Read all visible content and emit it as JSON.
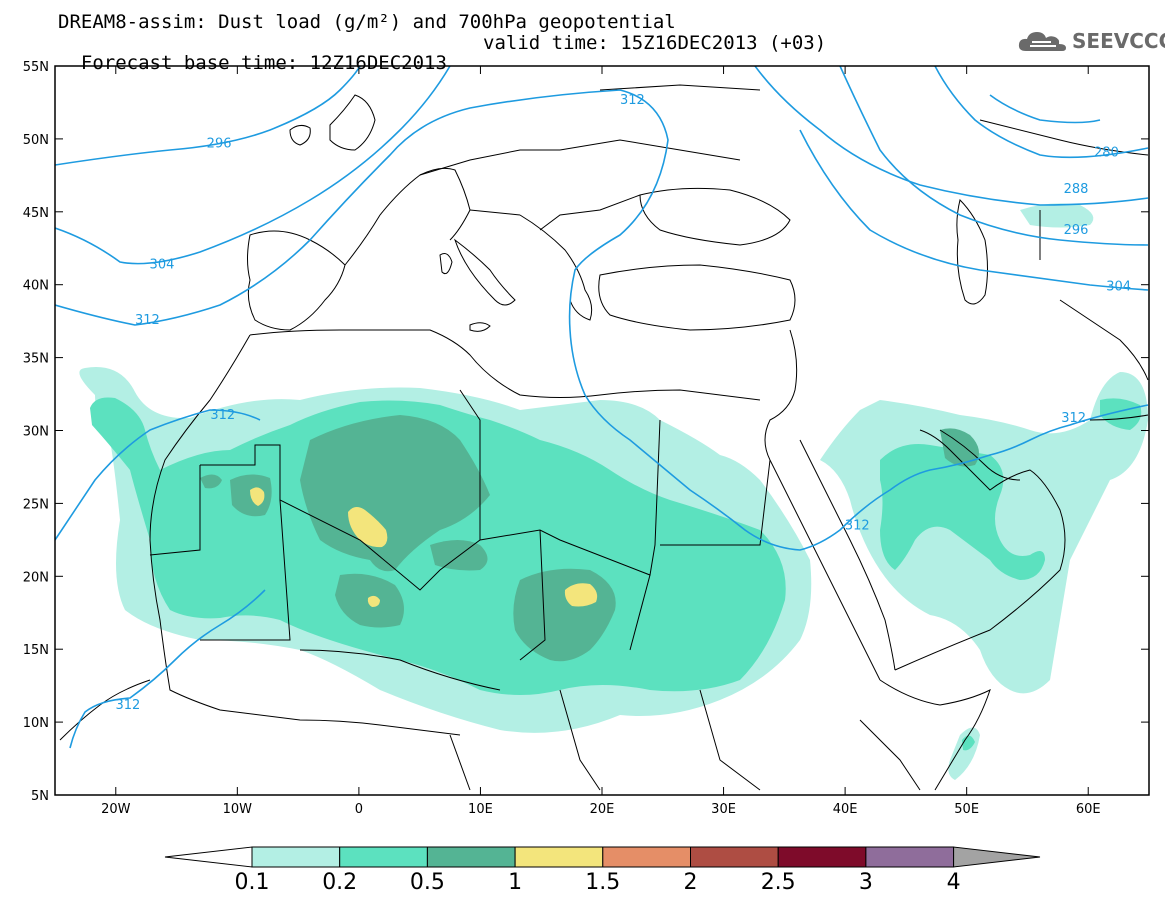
{
  "title": {
    "line1": "DREAM8-assim: Dust load (g/m²) and 700hPa geopotential",
    "line2_base": "Forecast base time: 12Z16DEC2013",
    "line2_valid": "valid time: 15Z16DEC2013 (+03)"
  },
  "logo": {
    "text": "SEEVCCC",
    "icon": "cloud-icon",
    "color": "#6a6a6a"
  },
  "map": {
    "lon_range": [
      -25,
      65
    ],
    "lat_range": [
      5,
      55
    ],
    "lon_ticks": [
      {
        "value": -20,
        "label": "20W"
      },
      {
        "value": -10,
        "label": "10W"
      },
      {
        "value": 0,
        "label": "0"
      },
      {
        "value": 10,
        "label": "10E"
      },
      {
        "value": 20,
        "label": "20E"
      },
      {
        "value": 30,
        "label": "30E"
      },
      {
        "value": 40,
        "label": "40E"
      },
      {
        "value": 50,
        "label": "50E"
      },
      {
        "value": 60,
        "label": "60E"
      }
    ],
    "lat_ticks": [
      {
        "value": 55,
        "label": "55N"
      },
      {
        "value": 50,
        "label": "50N"
      },
      {
        "value": 45,
        "label": "45N"
      },
      {
        "value": 40,
        "label": "40N"
      },
      {
        "value": 35,
        "label": "35N"
      },
      {
        "value": 30,
        "label": "30N"
      },
      {
        "value": 25,
        "label": "25N"
      },
      {
        "value": 20,
        "label": "20N"
      },
      {
        "value": 15,
        "label": "15N"
      },
      {
        "value": 10,
        "label": "10N"
      },
      {
        "value": 5,
        "label": "5N"
      }
    ],
    "contour_color": "#1e9be0",
    "contour_labels": [
      {
        "text": "312",
        "lon": 22.5,
        "lat": 52.6
      },
      {
        "text": "296",
        "lon": -11.5,
        "lat": 49.6
      },
      {
        "text": "304",
        "lon": -16.2,
        "lat": 41.3
      },
      {
        "text": "312",
        "lon": -17.4,
        "lat": 37.5
      },
      {
        "text": "312",
        "lon": -11.2,
        "lat": 31.0
      },
      {
        "text": "312",
        "lon": -19.0,
        "lat": 11.1
      },
      {
        "text": "312",
        "lon": 41.0,
        "lat": 23.4
      },
      {
        "text": "312",
        "lon": 58.8,
        "lat": 30.8
      },
      {
        "text": "280",
        "lon": 61.5,
        "lat": 49.0
      },
      {
        "text": "288",
        "lon": 59.0,
        "lat": 46.5
      },
      {
        "text": "296",
        "lon": 59.0,
        "lat": 43.7
      },
      {
        "text": "304",
        "lon": 62.5,
        "lat": 39.8
      }
    ]
  },
  "colorbar": {
    "levels": [
      "0.1",
      "0.2",
      "0.5",
      "1",
      "1.5",
      "2",
      "2.5",
      "3",
      "4"
    ],
    "colors": [
      "#b3efe4",
      "#5ce1bf",
      "#54b494",
      "#f3e57c",
      "#e58e67",
      "#ae4d43",
      "#7e0b2a",
      "#8f6d9b"
    ],
    "under_color": "#ffffff",
    "over_color": "#a3a3a3"
  },
  "dust_colors": {
    "c01": "#b3efe4",
    "c02": "#5ce1bf",
    "c05": "#54b494",
    "c1": "#f3e57c"
  }
}
